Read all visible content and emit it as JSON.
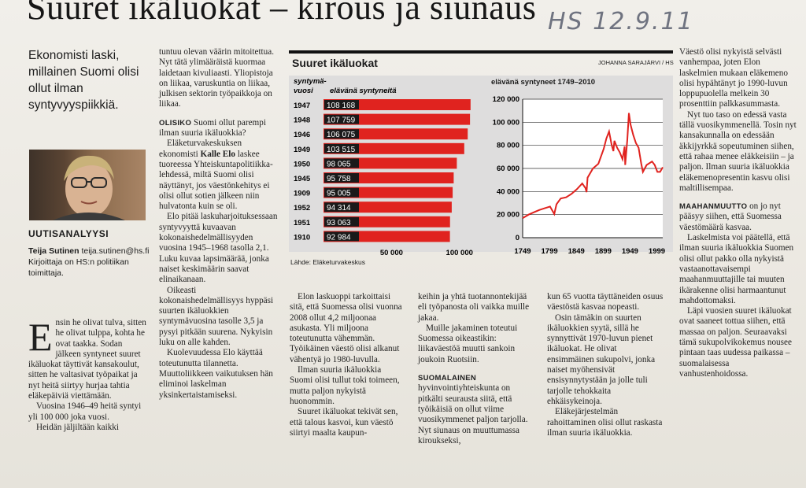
{
  "headline": "Suuret ikäluokat – kirous ja siunaus",
  "handnote": "HS 12.9.11",
  "lead": "Ekonomisti laski, millainen Suomi olisi ollut ilman syntyvyyspiikkiä.",
  "byline": {
    "section": "UUTISANALYYSI",
    "name": "Teija Sutinen",
    "email": "teija.sutinen@hs.fi",
    "role": "Kirjoittaja on HS:n politiikan toimittaja."
  },
  "col1": {
    "dropcap": "E",
    "text": "nsin he olivat tulva, sitten he olivat tulppa, kohta he ovat taakka. Sodan jälkeen syntyneet suuret ikäluokat täyttivät kansakoulut, sitten he valtasivat työpaikat ja nyt heitä siirtyy hurjaa tahtia eläkepäiviä viettämään.",
    "p2": "Vuosina 1946–49 heitä syntyi yli 100 000 joka vuosi.",
    "p3": "Heidän jäljiltään kaikki"
  },
  "col2": {
    "p1": "tuntuu olevan väärin mitoitettua. Nyt tätä ylimääräistä kuormaa laidetaan kivuliaasti. Yliopistoja on liikaa, varuskuntia on liikaa, julkisen sektorin työpaikkoja on liikaa.",
    "sub": "OLISIKO",
    "p2": "Suomi ollut parempi ilman suuria ikäluokkia?",
    "p3a": "Eläketurvakeskuksen ekonomisti",
    "p3b": "Kalle Elo",
    "p3c": "laskee tuoreessa Yhteiskuntapolitiikka-lehdessä, miltä Suomi olisi näyttänyt, jos väestönkehitys ei olisi ollut sotien jälkeen niin hulvatonta kuin se oli.",
    "p4": "Elo pitää laskuharjoituksessaan syntyvyyttä kuvaavan kokonaishedelmällisyyden vuosina 1945–1968 tasolla 2,1. Luku kuvaa lapsimäärää, jonka naiset keskimäärin saavat elinaikanaan.",
    "p5": "Oikeasti kokonaishedelmällisyys hyppäsi suurten ikäluokkien syntymävuosina tasolle 3,5 ja pysyi pitkään suurena. Nykyisin luku on alle kahden.",
    "p6": "Kuolevuudessa Elo käyttää toteutunutta tilannetta. Muuttoliikkeen vaikutuksen hän eliminoi laskelman yksinkertaistamiseksi."
  },
  "col3": {
    "p1": "Elon laskuoppi tarkoittaisi sitä, että Suomessa olisi vuonna 2008 ollut 4,2 miljoonaa asukasta. Yli miljoona toteutunutta vähemmän. Työikäinen väestö olisi alkanut vähentyä jo 1980-luvulla.",
    "p2": "Ilman suuria ikäluokkia Suomi olisi tullut toki toimeen, mutta paljon nykyistä huonommin.",
    "p3": "Suuret ikäluokat tekivät sen, että talous kasvoi, kun väestö siirtyi maalta kaupun-"
  },
  "col4": {
    "p1": "keihin ja yhtä tuotannontekijää eli työpanosta oli vaikka muille jakaa.",
    "p2": "Muille jakaminen toteutui Suomessa oikeastikin: liikaväestöä muutti sankoin joukoin Ruotsiin.",
    "sub": "SUOMALAINEN",
    "p3": "hyvinvointiyhteiskunta on pitkälti seurausta siitä, että työikäisiä on ollut viime vuosikymmenet paljon tarjolla. Nyt siunaus on muuttumassa kiroukseksi,"
  },
  "col5": {
    "p1": "kun 65 vuotta täyttäneiden osuus väestöstä kasvaa nopeasti.",
    "p2": "Osin tämäkin on suurten ikäluokkien syytä, sillä he synnyttivät 1970-luvun pienet ikäluokat. He olivat ensimmäinen sukupolvi, jonka naiset myöhensivät ensisynnytystään ja jolle tuli tarjolle tehokkaita ehkäisykeinoja.",
    "p3": "Eläkejärjestelmän rahoittaminen olisi ollut raskasta ilman suuria ikäluokkia."
  },
  "col6": {
    "p1": "Väestö olisi nykyistä selvästi vanhempaa, joten Elon laskelmien mukaan eläkemeno olisi hypähtänyt jo 1990-luvun loppupuolella melkein 30 prosenttiin palkkasummasta.",
    "p2": "Nyt tuo taso on edessä vasta tällä vuosikymmenellä. Tosin nyt kansakunnalla on edessään äkkijyrkkä sopeutuminen siihen, että rahaa menee eläkkeisiin – ja paljon. Ilman suuria ikäluokkia eläkemenopresentin kasvu olisi maltillisempaa.",
    "sub": "MAAHANMUUTTO",
    "p3": "on jo nyt pääsyy siihen, että Suomessa väestömäärä kasvaa.",
    "p4": "Laskelmista voi päätellä, että ilman suuria ikäluokkia Suomen olisi ollut pakko olla nykyistä vastaanottavaisempi maahanmuuttajille tai muuten ikärakenne olisi harmaantunut mahdottomaksi.",
    "p5": "Läpi vuosien suuret ikäluokat ovat saaneet tottua siihen, että massaa on paljon. Seuraavaksi tämä sukupolvikokemus nousee pintaan taas uudessa paikassa – suomalaisessa vanhustenhoidossa."
  },
  "chart": {
    "title": "Suuret ikäluokat",
    "credit": "JOHANNA SARAJÄRVI / HS",
    "source": "Lähde: Eläketurvakeskus",
    "bar_header_1": "syntymä-",
    "bar_header_2": "vuosi",
    "bar_header_3": "elävänä syntyneitä",
    "line_caption": "elävänä syntyneet 1749–2010",
    "bar_color": "#e0231f",
    "line_color": "#e0231f"
  },
  "chart_data": [
    {
      "type": "bar",
      "orientation": "horizontal",
      "categories": [
        "1947",
        "1948",
        "1946",
        "1949",
        "1950",
        "1945",
        "1909",
        "1952",
        "1951",
        "1910"
      ],
      "values": [
        108168,
        107759,
        106075,
        103515,
        98065,
        95758,
        95005,
        94314,
        93063,
        92984
      ],
      "value_labels": [
        "108 168",
        "107 759",
        "106 075",
        "103 515",
        "98 065",
        "95 758",
        "95 005",
        "94 314",
        "93 063",
        "92 984"
      ],
      "xlim": [
        0,
        110000
      ],
      "xticks": [
        50000,
        100000
      ],
      "xtick_labels": [
        "50 000",
        "100 000"
      ],
      "xlabel": "elävänä syntyneitä",
      "ylabel": "syntymävuosi"
    },
    {
      "type": "line",
      "title": "elävänä syntyneet 1749–2010",
      "xlim": [
        1749,
        2010
      ],
      "ylim": [
        0,
        120000
      ],
      "xticks": [
        1749,
        1799,
        1849,
        1899,
        1949,
        1999
      ],
      "xtick_labels": [
        "1749",
        "1799",
        "1849",
        "1899",
        "1949",
        "1999"
      ],
      "yticks": [
        0,
        20000,
        40000,
        60000,
        80000,
        100000,
        120000
      ],
      "ytick_labels": [
        "0",
        "20 000",
        "40 000",
        "60 000",
        "80 000",
        "100 000",
        "120 000"
      ],
      "grid": true,
      "x": [
        1749,
        1760,
        1770,
        1780,
        1790,
        1800,
        1808,
        1812,
        1820,
        1830,
        1840,
        1850,
        1860,
        1866,
        1868,
        1870,
        1880,
        1890,
        1900,
        1905,
        1910,
        1915,
        1918,
        1920,
        1925,
        1930,
        1935,
        1939,
        1940,
        1944,
        1947,
        1950,
        1955,
        1960,
        1965,
        1970,
        1973,
        1980,
        1990,
        1995,
        2000,
        2005,
        2010
      ],
      "y": [
        17000,
        20000,
        22000,
        24000,
        25500,
        27000,
        20500,
        29000,
        34000,
        35000,
        38000,
        42000,
        47000,
        43000,
        39500,
        52000,
        60000,
        64000,
        77000,
        86000,
        92000,
        80000,
        75000,
        84000,
        78000,
        74000,
        68000,
        79000,
        63000,
        85000,
        108000,
        98000,
        89000,
        82000,
        78000,
        64000,
        57000,
        63000,
        66000,
        63000,
        57000,
        57000,
        61000
      ]
    }
  ]
}
